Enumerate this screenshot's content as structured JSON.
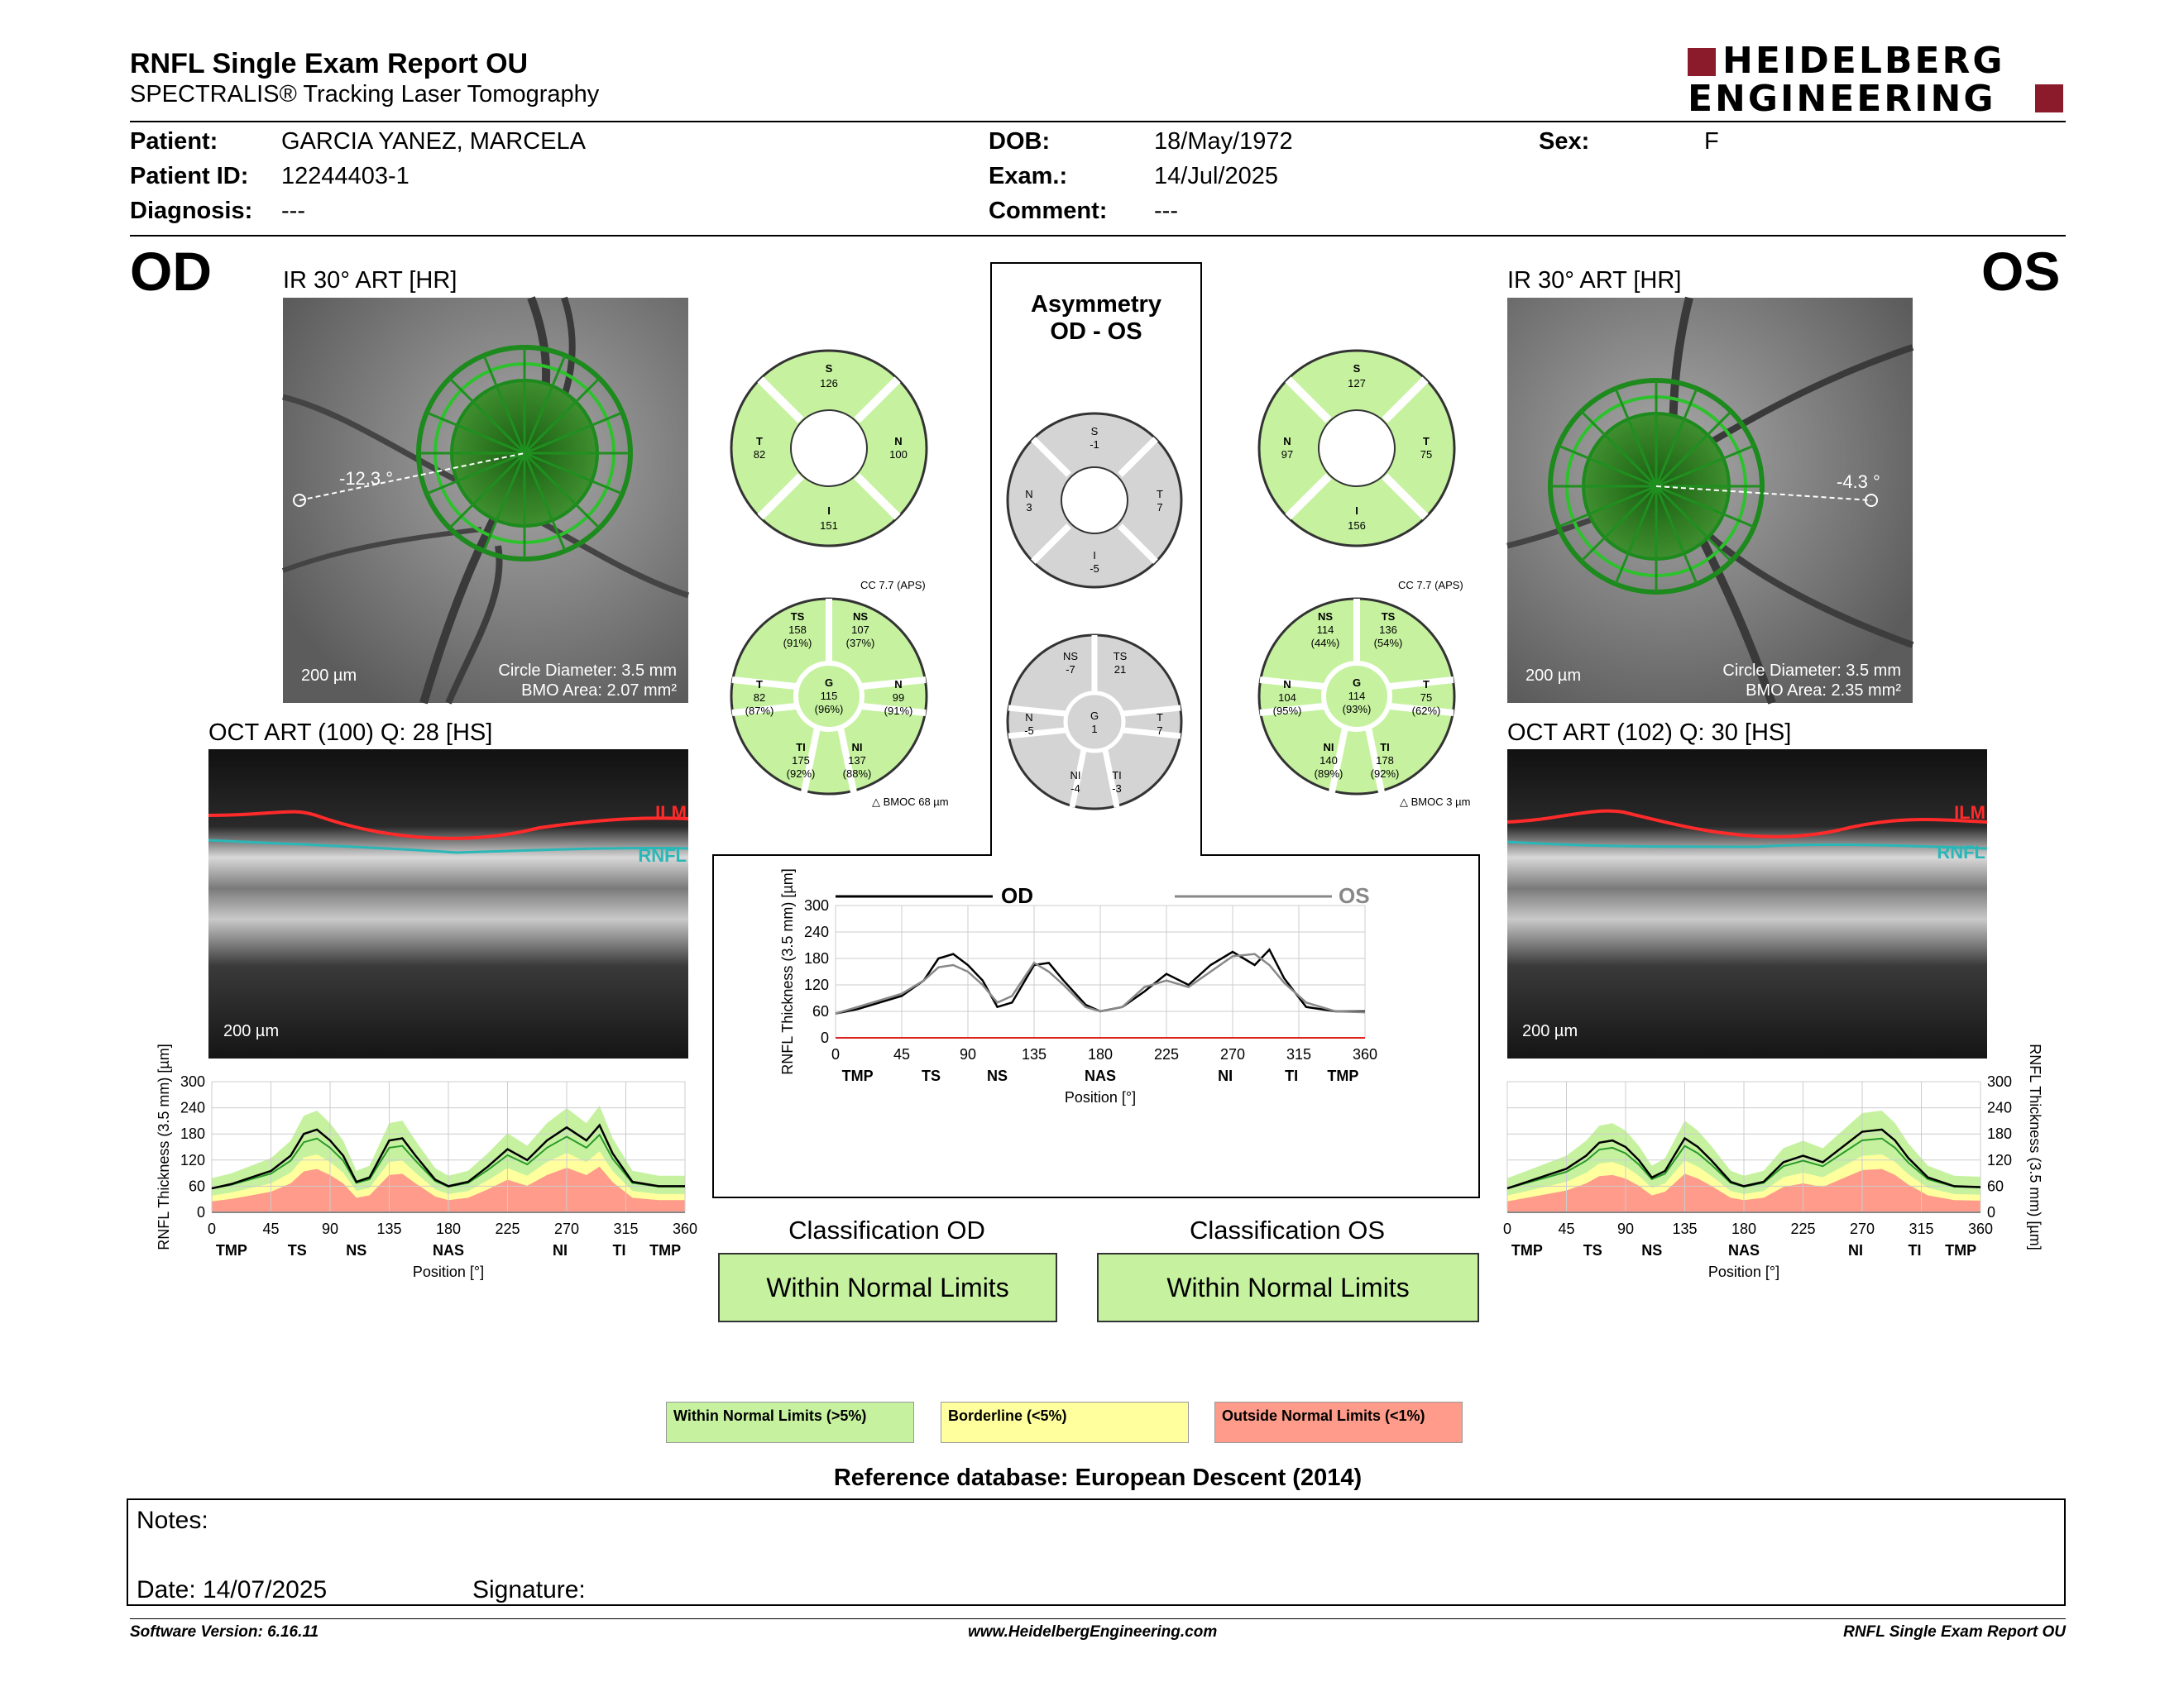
{
  "header": {
    "title": "RNFL Single Exam Report OU",
    "subtitle": "SPECTRALIS® Tracking Laser Tomography",
    "logo_line1": "HEIDELBERG",
    "logo_line2": "ENGINEERING"
  },
  "patient": {
    "patient_label": "Patient:",
    "patient_value": "GARCIA YANEZ, MARCELA",
    "id_label": "Patient ID:",
    "id_value": "12244403-1",
    "diagnosis_label": "Diagnosis:",
    "diagnosis_value": "---",
    "dob_label": "DOB:",
    "dob_value": "18/May/1972",
    "exam_label": "Exam.:",
    "exam_value": "14/Jul/2025",
    "comment_label": "Comment:",
    "comment_value": "---",
    "sex_label": "Sex:",
    "sex_value": "F"
  },
  "od": {
    "eye": "OD",
    "ir_title": "IR 30° ART [HR]",
    "angle": "-12.3 °",
    "scale": "200 µm",
    "circle_diameter": "Circle Diameter: 3.5 mm",
    "bmo_area": "BMO Area: 2.07 mm²",
    "oct_title": "OCT ART (100) Q: 28 [HS]",
    "oct_scale": "200 µm",
    "ilm": "ILM",
    "rnfl": "RNFL",
    "quad": {
      "S": "126",
      "T": "82",
      "N": "100",
      "I": "151"
    },
    "cc": "CC 7.7 (APS)",
    "bmoc": "BMOC 68 µm",
    "sectors": {
      "TS": [
        "158",
        "(91%)"
      ],
      "NS": [
        "107",
        "(37%)"
      ],
      "T": [
        "82",
        "(87%)"
      ],
      "G": [
        "115",
        "(96%)"
      ],
      "N": [
        "99",
        "(91%)"
      ],
      "TI": [
        "175",
        "(92%)"
      ],
      "NI": [
        "137",
        "(88%)"
      ]
    },
    "classification_label": "Classification OD",
    "classification": "Within Normal Limits"
  },
  "os": {
    "eye": "OS",
    "ir_title": "IR 30° ART [HR]",
    "angle": "-4.3 °",
    "scale": "200 µm",
    "circle_diameter": "Circle Diameter: 3.5 mm",
    "bmo_area": "BMO Area: 2.35 mm²",
    "oct_title": "OCT ART (102) Q: 30 [HS]",
    "oct_scale": "200 µm",
    "ilm": "ILM",
    "rnfl": "RNFL",
    "quad": {
      "S": "127",
      "N": "97",
      "T": "75",
      "I": "156"
    },
    "cc": "CC 7.7 (APS)",
    "bmoc": "BMOC 3 µm",
    "sectors": {
      "NS": [
        "114",
        "(44%)"
      ],
      "TS": [
        "136",
        "(54%)"
      ],
      "N": [
        "104",
        "(95%)"
      ],
      "G": [
        "114",
        "(93%)"
      ],
      "T": [
        "75",
        "(62%)"
      ],
      "NI": [
        "140",
        "(89%)"
      ],
      "TI": [
        "178",
        "(92%)"
      ]
    },
    "classification_label": "Classification OS",
    "classification": "Within Normal Limits"
  },
  "asymmetry": {
    "title1": "Asymmetry",
    "title2": "OD - OS",
    "quad": {
      "S": "-1",
      "N": "3",
      "T": "7",
      "I": "-5"
    },
    "sectors": {
      "NS": "-7",
      "TS": "21",
      "N": "-5",
      "G": "1",
      "T": "7",
      "NI": "-4",
      "TI": "-3"
    }
  },
  "legend": {
    "wnl": "Within Normal Limits (>5%)",
    "borderline": "Borderline (<5%)",
    "onl": "Outside Normal Limits (<1%)",
    "reference": "Reference database: European Descent (2014)",
    "colors": {
      "wnl": "#c6f2a0",
      "borderline": "#ffff9e",
      "onl": "#ff9b8a"
    }
  },
  "notes": {
    "notes_label": "Notes:",
    "date_label": "Date: 14/07/2025",
    "signature_label": "Signature:"
  },
  "footer": {
    "software": "Software Version: 6.16.11",
    "website": "www.HeidelbergEngineering.com",
    "report": "RNFL Single Exam Report OU"
  },
  "chart_data": [
    {
      "type": "line",
      "title": "",
      "legend": [
        "OD",
        "OS"
      ],
      "xlabel": "Position [°]",
      "ylabel": "RNFL Thickness (3.5 mm) [µm]",
      "xlim": [
        0,
        360
      ],
      "ylim": [
        0,
        300
      ],
      "xticks": [
        "0",
        "45",
        "90",
        "135",
        "180",
        "225",
        "270",
        "315",
        "360"
      ],
      "yticks": [
        "0",
        "60",
        "120",
        "180",
        "240",
        "300"
      ],
      "sector_labels": [
        "TMP",
        "TS",
        "NS",
        "NAS",
        "NI",
        "TI",
        "TMP"
      ],
      "x": [
        0,
        15,
        30,
        45,
        60,
        70,
        80,
        90,
        100,
        110,
        120,
        135,
        145,
        155,
        170,
        180,
        195,
        210,
        225,
        240,
        255,
        270,
        285,
        295,
        305,
        320,
        340,
        360
      ],
      "series": [
        {
          "name": "OD",
          "values": [
            55,
            65,
            80,
            95,
            130,
            180,
            190,
            165,
            130,
            70,
            80,
            165,
            170,
            130,
            75,
            60,
            70,
            105,
            145,
            120,
            165,
            195,
            165,
            200,
            135,
            70,
            60,
            60
          ]
        },
        {
          "name": "OS",
          "values": [
            55,
            70,
            85,
            100,
            130,
            160,
            165,
            150,
            120,
            80,
            95,
            170,
            150,
            120,
            70,
            60,
            70,
            115,
            130,
            115,
            150,
            185,
            190,
            165,
            125,
            80,
            60,
            58
          ]
        }
      ]
    },
    {
      "type": "line",
      "title": "",
      "xlabel": "Position [°]",
      "ylabel": "RNFL Thickness (3.5 mm) [µm]",
      "xlim": [
        0,
        360
      ],
      "ylim": [
        0,
        300
      ],
      "xticks": [
        "0",
        "45",
        "90",
        "135",
        "180",
        "225",
        "270",
        "315",
        "360"
      ],
      "yticks": [
        "0",
        "60",
        "120",
        "180",
        "240",
        "300"
      ],
      "sector_labels": [
        "TMP",
        "TS",
        "NS",
        "NAS",
        "NI",
        "TI",
        "TMP"
      ],
      "x": [
        0,
        15,
        30,
        45,
        60,
        70,
        80,
        90,
        100,
        110,
        120,
        135,
        145,
        155,
        170,
        180,
        195,
        210,
        225,
        240,
        255,
        270,
        285,
        295,
        305,
        320,
        340,
        360
      ],
      "series": [
        {
          "name": "OD",
          "values": [
            55,
            65,
            80,
            95,
            130,
            180,
            190,
            165,
            130,
            70,
            80,
            165,
            170,
            130,
            75,
            60,
            70,
            105,
            145,
            120,
            165,
            195,
            165,
            200,
            135,
            70,
            60,
            60
          ]
        }
      ]
    },
    {
      "type": "line",
      "title": "",
      "xlabel": "Position [°]",
      "ylabel": "RNFL Thickness (3.5 mm) [µm]",
      "xlim": [
        0,
        360
      ],
      "ylim": [
        0,
        300
      ],
      "xticks": [
        "0",
        "45",
        "90",
        "135",
        "180",
        "225",
        "270",
        "315",
        "360"
      ],
      "yticks": [
        "0",
        "60",
        "120",
        "180",
        "240",
        "300"
      ],
      "sector_labels": [
        "TMP",
        "TS",
        "NS",
        "NAS",
        "NI",
        "TI",
        "TMP"
      ],
      "x": [
        0,
        15,
        30,
        45,
        60,
        70,
        80,
        90,
        100,
        110,
        120,
        135,
        145,
        155,
        170,
        180,
        195,
        210,
        225,
        240,
        255,
        270,
        285,
        295,
        305,
        320,
        340,
        360
      ],
      "series": [
        {
          "name": "OS",
          "values": [
            55,
            70,
            85,
            100,
            130,
            160,
            165,
            150,
            120,
            80,
            95,
            170,
            150,
            120,
            70,
            60,
            70,
            115,
            130,
            115,
            150,
            185,
            190,
            165,
            125,
            80,
            60,
            58
          ]
        }
      ]
    }
  ]
}
